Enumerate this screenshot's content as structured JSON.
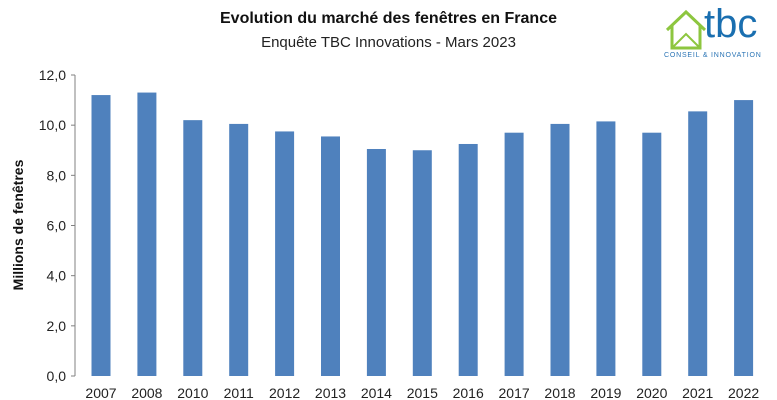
{
  "chart_data": {
    "type": "bar",
    "title": "Evolution du marché des fenêtres en France",
    "subtitle": "Enquête TBC Innovations - Mars 2023",
    "ylabel": "Millions de fenêtres",
    "xlabel": "",
    "categories": [
      "2007",
      "2008",
      "2010",
      "2011",
      "2012",
      "2013",
      "2014",
      "2015",
      "2016",
      "2017",
      "2018",
      "2019",
      "2020",
      "2021",
      "2022"
    ],
    "values": [
      11.2,
      11.3,
      10.2,
      10.05,
      9.75,
      9.55,
      9.05,
      9.0,
      9.25,
      9.7,
      10.05,
      10.15,
      9.7,
      10.55,
      11.0
    ],
    "ylim": [
      0,
      12
    ],
    "yticks": [
      "0,0",
      "2,0",
      "4,0",
      "6,0",
      "8,0",
      "10,0",
      "12,0"
    ],
    "bar_color": "#4f81bd",
    "grid": false,
    "legend": "none"
  },
  "logo": {
    "word": "tbc",
    "tagline": "CONSEIL & INNOVATION",
    "icon": "house-icon",
    "green": "#8dc63f",
    "blue": "#1a6fb0"
  }
}
